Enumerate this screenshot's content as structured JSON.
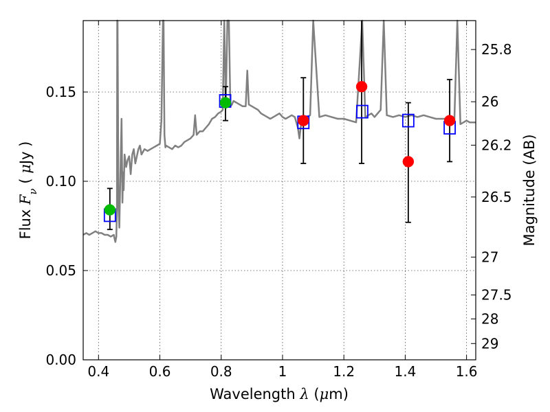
{
  "chart_data": {
    "type": "scatter",
    "title": "",
    "xlabel": {
      "prefix": "Wavelength",
      "symbol": "λ",
      "unit_open": "(",
      "unit_mu": "μ",
      "unit_rest": "m)"
    },
    "ylabel": {
      "prefix": "Flux",
      "symbol": "F",
      "subscript": "ν",
      "unit_open": "(",
      "unit_mu": "μ",
      "unit_rest": "Jy",
      "unit_close": ")"
    },
    "y2label": "Magnitude (AB)",
    "xlim": [
      0.35,
      1.63
    ],
    "ylim": [
      0.0,
      0.19
    ],
    "grid": true,
    "xticks": [
      {
        "value": 0.4,
        "label": "0.4"
      },
      {
        "value": 0.6,
        "label": "0.6"
      },
      {
        "value": 0.8,
        "label": "0.8"
      },
      {
        "value": 1.0,
        "label": "1"
      },
      {
        "value": 1.2,
        "label": "1.2"
      },
      {
        "value": 1.4,
        "label": "1.4"
      },
      {
        "value": 1.6,
        "label": "1.6"
      }
    ],
    "yticks": [
      {
        "value": 0.0,
        "label": "0.00"
      },
      {
        "value": 0.05,
        "label": "0.05"
      },
      {
        "value": 0.1,
        "label": "0.10"
      },
      {
        "value": 0.15,
        "label": "0.15"
      }
    ],
    "magnitude_ticks": [
      {
        "value": 25.8,
        "label": "25.8"
      },
      {
        "value": 26.0,
        "label": "26"
      },
      {
        "value": 26.2,
        "label": "26.2"
      },
      {
        "value": 26.5,
        "label": "26.5"
      },
      {
        "value": 27.0,
        "label": "27"
      },
      {
        "value": 27.5,
        "label": "27.5"
      },
      {
        "value": 28.0,
        "label": "28"
      },
      {
        "value": 29.0,
        "label": "29"
      }
    ],
    "series": [
      {
        "name": "template-spectrum",
        "kind": "line",
        "color": "#808080",
        "x": [
          0.35,
          0.36,
          0.37,
          0.38,
          0.39,
          0.4,
          0.41,
          0.42,
          0.43,
          0.44,
          0.45,
          0.452,
          0.455,
          0.458,
          0.46,
          0.461,
          0.462,
          0.465,
          0.468,
          0.47,
          0.475,
          0.478,
          0.48,
          0.482,
          0.485,
          0.49,
          0.495,
          0.5,
          0.505,
          0.51,
          0.515,
          0.52,
          0.53,
          0.535,
          0.54,
          0.55,
          0.56,
          0.57,
          0.58,
          0.59,
          0.6,
          0.605,
          0.61,
          0.612,
          0.615,
          0.618,
          0.62,
          0.63,
          0.64,
          0.65,
          0.66,
          0.67,
          0.68,
          0.69,
          0.7,
          0.71,
          0.715,
          0.72,
          0.73,
          0.74,
          0.75,
          0.76,
          0.77,
          0.78,
          0.79,
          0.8,
          0.805,
          0.81,
          0.815,
          0.82,
          0.825,
          0.83,
          0.835,
          0.84,
          0.85,
          0.86,
          0.87,
          0.88,
          0.885,
          0.89,
          0.9,
          0.91,
          0.92,
          0.93,
          0.94,
          0.95,
          0.96,
          0.97,
          0.98,
          0.99,
          1.0,
          1.01,
          1.02,
          1.03,
          1.04,
          1.05,
          1.055,
          1.06,
          1.065,
          1.07,
          1.08,
          1.09,
          1.1,
          1.12,
          1.14,
          1.16,
          1.18,
          1.2,
          1.22,
          1.24,
          1.26,
          1.27,
          1.28,
          1.29,
          1.3,
          1.32,
          1.33,
          1.34,
          1.36,
          1.38,
          1.4,
          1.42,
          1.44,
          1.46,
          1.48,
          1.5,
          1.52,
          1.54,
          1.56,
          1.57,
          1.58,
          1.59,
          1.6,
          1.61,
          1.62,
          1.63
        ],
        "y": [
          0.07,
          0.071,
          0.07,
          0.071,
          0.072,
          0.071,
          0.071,
          0.07,
          0.07,
          0.069,
          0.07,
          0.068,
          0.066,
          0.069,
          0.085,
          0.19,
          0.19,
          0.088,
          0.074,
          0.092,
          0.135,
          0.088,
          0.105,
          0.095,
          0.115,
          0.108,
          0.112,
          0.114,
          0.104,
          0.115,
          0.118,
          0.11,
          0.118,
          0.12,
          0.115,
          0.118,
          0.117,
          0.118,
          0.119,
          0.12,
          0.121,
          0.134,
          0.19,
          0.19,
          0.126,
          0.119,
          0.12,
          0.119,
          0.118,
          0.12,
          0.119,
          0.12,
          0.122,
          0.123,
          0.124,
          0.126,
          0.137,
          0.126,
          0.128,
          0.128,
          0.13,
          0.132,
          0.135,
          0.136,
          0.138,
          0.139,
          0.14,
          0.19,
          0.141,
          0.19,
          0.19,
          0.142,
          0.143,
          0.145,
          0.144,
          0.143,
          0.142,
          0.142,
          0.162,
          0.143,
          0.142,
          0.141,
          0.14,
          0.138,
          0.137,
          0.136,
          0.135,
          0.136,
          0.137,
          0.138,
          0.136,
          0.135,
          0.136,
          0.137,
          0.136,
          0.13,
          0.124,
          0.131,
          0.136,
          0.135,
          0.136,
          0.137,
          0.19,
          0.136,
          0.137,
          0.136,
          0.135,
          0.135,
          0.134,
          0.133,
          0.19,
          0.136,
          0.137,
          0.138,
          0.136,
          0.14,
          0.19,
          0.137,
          0.136,
          0.137,
          0.136,
          0.137,
          0.136,
          0.137,
          0.136,
          0.135,
          0.135,
          0.135,
          0.133,
          0.19,
          0.132,
          0.133,
          0.134,
          0.133,
          0.133,
          0.133
        ]
      },
      {
        "name": "model-fluxes",
        "kind": "open-square",
        "color": "#0000ff",
        "points": [
          {
            "x": 0.437,
            "y": 0.081
          },
          {
            "x": 0.813,
            "y": 0.145
          },
          {
            "x": 1.068,
            "y": 0.133
          },
          {
            "x": 1.26,
            "y": 0.139
          },
          {
            "x": 1.41,
            "y": 0.134
          },
          {
            "x": 1.545,
            "y": 0.13
          }
        ]
      },
      {
        "name": "observed-optical",
        "kind": "filled-circle",
        "color": "#00bb00",
        "points": [
          {
            "x": 0.437,
            "y": 0.084,
            "ylo": 0.073,
            "yhi": 0.096
          },
          {
            "x": 0.814,
            "y": 0.144,
            "ylo": 0.134,
            "yhi": 0.153
          }
        ]
      },
      {
        "name": "observed-nir",
        "kind": "filled-circle",
        "color": "#ff0000",
        "points": [
          {
            "x": 1.068,
            "y": 0.134,
            "ylo": 0.11,
            "yhi": 0.158
          },
          {
            "x": 1.258,
            "y": 0.153,
            "ylo": 0.11,
            "yhi": 0.19
          },
          {
            "x": 1.41,
            "y": 0.111,
            "ylo": 0.077,
            "yhi": 0.144
          },
          {
            "x": 1.545,
            "y": 0.134,
            "ylo": 0.111,
            "yhi": 0.157
          }
        ]
      }
    ]
  }
}
